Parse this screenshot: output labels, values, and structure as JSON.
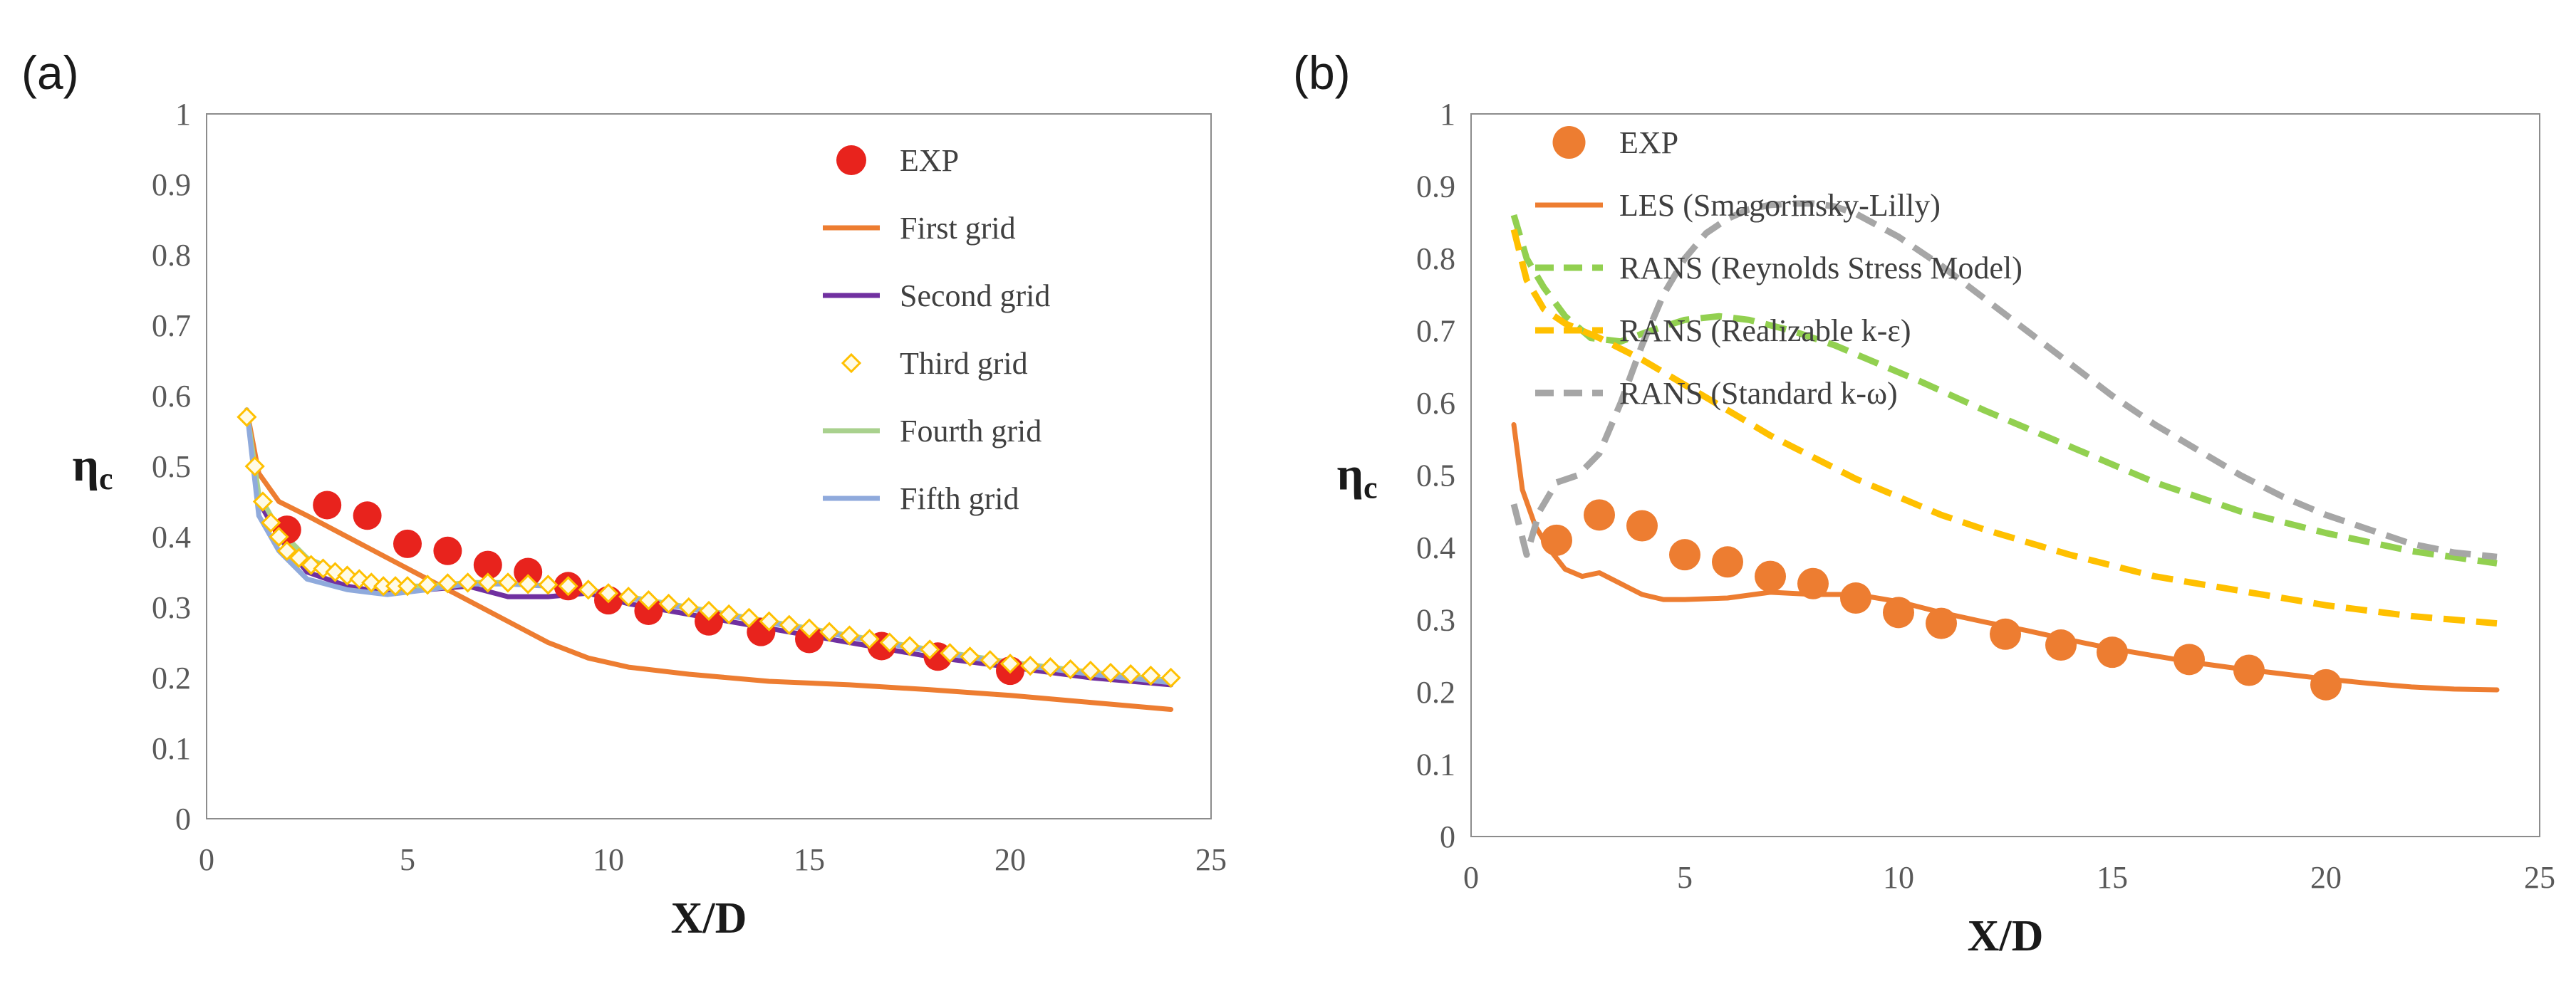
{
  "chart_data": [
    {
      "panel": "(a)",
      "type": "line",
      "xlabel": "X/D",
      "ylabel_base": "η",
      "ylabel_sub": "c",
      "xlim": [
        0,
        25
      ],
      "ylim": [
        0,
        1
      ],
      "xticks": [
        0,
        5,
        10,
        15,
        20,
        25
      ],
      "yticks": [
        0,
        0.1,
        0.2,
        0.3,
        0.4,
        0.5,
        0.6,
        0.7,
        0.8,
        0.9,
        1
      ],
      "grid": false,
      "legend_position": "top-right inside",
      "series": [
        {
          "name": "EXP",
          "kind": "scatter",
          "marker": "circle",
          "color": "#e8231d",
          "x": [
            2,
            3,
            4,
            5,
            6,
            7,
            8,
            9,
            10,
            11,
            12.5,
            13.8,
            15,
            16.8,
            18.2,
            20
          ],
          "y": [
            0.41,
            0.445,
            0.43,
            0.39,
            0.38,
            0.36,
            0.35,
            0.33,
            0.31,
            0.295,
            0.28,
            0.265,
            0.255,
            0.245,
            0.23,
            0.21
          ]
        },
        {
          "name": "First grid",
          "kind": "line",
          "color": "#ed7d31",
          "x": [
            1,
            1.3,
            1.8,
            2.5,
            3.5,
            4.5,
            5.5,
            6.5,
            7.5,
            8.5,
            9.5,
            10.5,
            12,
            14,
            16,
            18,
            20,
            22,
            24
          ],
          "y": [
            0.58,
            0.49,
            0.45,
            0.43,
            0.4,
            0.37,
            0.34,
            0.31,
            0.28,
            0.25,
            0.228,
            0.215,
            0.205,
            0.195,
            0.19,
            0.183,
            0.175,
            0.165,
            0.155
          ]
        },
        {
          "name": "Second grid",
          "kind": "line",
          "color": "#7030a0",
          "x": [
            1,
            1.3,
            1.8,
            2.5,
            3.5,
            4.5,
            5.5,
            6.5,
            7.5,
            8.5,
            9.5,
            10.5,
            12,
            14,
            16,
            18,
            20,
            22,
            24
          ],
          "y": [
            0.58,
            0.45,
            0.4,
            0.35,
            0.33,
            0.32,
            0.325,
            0.33,
            0.315,
            0.315,
            0.32,
            0.305,
            0.29,
            0.27,
            0.25,
            0.23,
            0.215,
            0.2,
            0.19
          ]
        },
        {
          "name": "Third grid",
          "kind": "scatter",
          "marker": "diamond",
          "color": "#ffc000",
          "x": [
            1,
            1.2,
            1.4,
            1.6,
            1.8,
            2,
            2.3,
            2.6,
            2.9,
            3.2,
            3.5,
            3.8,
            4.1,
            4.4,
            4.7,
            5,
            5.5,
            6,
            6.5,
            7,
            7.5,
            8,
            8.5,
            9,
            9.5,
            10,
            10.5,
            11,
            11.5,
            12,
            12.5,
            13,
            13.5,
            14,
            14.5,
            15,
            15.5,
            16,
            16.5,
            17,
            17.5,
            18,
            18.5,
            19,
            19.5,
            20,
            20.5,
            21,
            21.5,
            22,
            22.5,
            23,
            23.5,
            24
          ],
          "y": [
            0.57,
            0.5,
            0.45,
            0.42,
            0.4,
            0.38,
            0.37,
            0.36,
            0.355,
            0.35,
            0.345,
            0.34,
            0.335,
            0.33,
            0.33,
            0.33,
            0.332,
            0.334,
            0.335,
            0.335,
            0.335,
            0.333,
            0.332,
            0.33,
            0.325,
            0.32,
            0.315,
            0.31,
            0.305,
            0.3,
            0.295,
            0.29,
            0.285,
            0.28,
            0.275,
            0.27,
            0.265,
            0.26,
            0.255,
            0.25,
            0.245,
            0.24,
            0.235,
            0.23,
            0.225,
            0.22,
            0.217,
            0.215,
            0.212,
            0.21,
            0.207,
            0.205,
            0.203,
            0.2
          ]
        },
        {
          "name": "Fourth grid",
          "kind": "line",
          "color": "#a9d18e",
          "x": [
            1,
            1.3,
            1.8,
            2.5,
            3.5,
            4.5,
            5.5,
            6.5,
            7.5,
            8.5,
            9.5,
            10.5,
            12,
            14,
            16,
            18,
            20,
            22,
            24
          ],
          "y": [
            0.58,
            0.46,
            0.41,
            0.37,
            0.345,
            0.33,
            0.33,
            0.335,
            0.335,
            0.33,
            0.325,
            0.315,
            0.3,
            0.28,
            0.26,
            0.24,
            0.222,
            0.208,
            0.196
          ]
        },
        {
          "name": "Fifth grid",
          "kind": "line",
          "color": "#8faadc",
          "x": [
            1,
            1.3,
            1.8,
            2.5,
            3.5,
            4.5,
            5.5,
            6.5,
            7.5,
            8.5,
            9.5,
            10.5,
            12,
            14,
            16,
            18,
            20,
            22,
            24
          ],
          "y": [
            0.58,
            0.43,
            0.38,
            0.34,
            0.325,
            0.318,
            0.325,
            0.333,
            0.333,
            0.33,
            0.325,
            0.313,
            0.298,
            0.278,
            0.258,
            0.238,
            0.22,
            0.205,
            0.193
          ]
        }
      ]
    },
    {
      "panel": "(b)",
      "type": "line",
      "xlabel": "X/D",
      "ylabel_base": "η",
      "ylabel_sub": "c",
      "xlim": [
        0,
        25
      ],
      "ylim": [
        0,
        1
      ],
      "xticks": [
        0,
        5,
        10,
        15,
        20,
        25
      ],
      "yticks": [
        0,
        0.1,
        0.2,
        0.3,
        0.4,
        0.5,
        0.6,
        0.7,
        0.8,
        0.9,
        1
      ],
      "grid": false,
      "legend_position": "top-right inside",
      "series": [
        {
          "name": "EXP",
          "kind": "scatter",
          "marker": "circle",
          "color": "#ed7d31",
          "x": [
            2,
            3,
            4,
            5,
            6,
            7,
            8,
            9,
            10,
            11,
            12.5,
            13.8,
            15,
            16.8,
            18.2,
            20
          ],
          "y": [
            0.41,
            0.445,
            0.43,
            0.39,
            0.38,
            0.36,
            0.35,
            0.33,
            0.31,
            0.295,
            0.28,
            0.265,
            0.255,
            0.245,
            0.23,
            0.21
          ]
        },
        {
          "name": "LES (Smagorinsky-Lilly)",
          "kind": "line",
          "color": "#ed7d31",
          "x": [
            1,
            1.2,
            1.5,
            1.8,
            2.2,
            2.6,
            3,
            3.5,
            4,
            4.5,
            5,
            6,
            7,
            8,
            9,
            10,
            11,
            12,
            13,
            14,
            15,
            16,
            17,
            18,
            19,
            20,
            21,
            22,
            23,
            24
          ],
          "y": [
            0.57,
            0.48,
            0.43,
            0.4,
            0.37,
            0.36,
            0.365,
            0.35,
            0.335,
            0.328,
            0.328,
            0.33,
            0.338,
            0.335,
            0.335,
            0.325,
            0.31,
            0.297,
            0.285,
            0.272,
            0.26,
            0.25,
            0.24,
            0.232,
            0.225,
            0.218,
            0.212,
            0.207,
            0.204,
            0.203
          ]
        },
        {
          "name": "RANS (Reynolds Stress Model)",
          "kind": "line",
          "dashed": true,
          "color": "#92d050",
          "x": [
            1,
            1.3,
            1.7,
            2.2,
            2.8,
            3.5,
            4.2,
            5,
            5.8,
            6.5,
            7.5,
            8.5,
            9.5,
            10.5,
            12,
            14,
            16,
            18,
            20,
            22,
            24
          ],
          "y": [
            0.86,
            0.8,
            0.76,
            0.72,
            0.69,
            0.685,
            0.7,
            0.715,
            0.72,
            0.715,
            0.7,
            0.68,
            0.655,
            0.63,
            0.59,
            0.54,
            0.49,
            0.45,
            0.42,
            0.395,
            0.378
          ]
        },
        {
          "name": "RANS (Realizable k-ε)",
          "kind": "line",
          "dashed": true,
          "color": "#ffc000",
          "x": [
            1,
            1.3,
            1.7,
            2.2,
            3,
            4,
            5,
            6,
            7,
            8,
            9,
            10,
            11,
            12,
            14,
            16,
            18,
            20,
            22,
            24
          ],
          "y": [
            0.84,
            0.77,
            0.73,
            0.71,
            0.69,
            0.66,
            0.625,
            0.59,
            0.555,
            0.525,
            0.495,
            0.47,
            0.445,
            0.425,
            0.39,
            0.36,
            0.34,
            0.32,
            0.305,
            0.295
          ]
        },
        {
          "name": "RANS (Standard k-ω)",
          "kind": "line",
          "dashed": true,
          "color": "#a6a6a6",
          "x": [
            1,
            1.3,
            1.6,
            2,
            2.5,
            3,
            3.5,
            4,
            4.5,
            5,
            5.5,
            6,
            6.5,
            7,
            7.5,
            8,
            8.5,
            9,
            10,
            11,
            12,
            13,
            14,
            15,
            16,
            17,
            18,
            19,
            20,
            21,
            22,
            23,
            24
          ],
          "y": [
            0.46,
            0.39,
            0.45,
            0.49,
            0.5,
            0.53,
            0.6,
            0.68,
            0.75,
            0.8,
            0.835,
            0.855,
            0.868,
            0.874,
            0.876,
            0.876,
            0.872,
            0.862,
            0.83,
            0.79,
            0.745,
            0.7,
            0.655,
            0.61,
            0.57,
            0.535,
            0.5,
            0.47,
            0.445,
            0.425,
            0.405,
            0.393,
            0.387
          ]
        }
      ]
    }
  ]
}
